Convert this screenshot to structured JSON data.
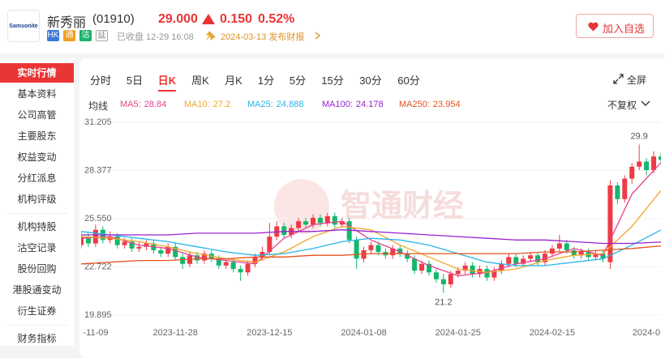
{
  "header": {
    "logo": "Samsonite",
    "name": "新秀丽",
    "code": "(01910)",
    "price": "29.000",
    "change": "0.150",
    "change_pct": "0.52%",
    "badges": [
      "HK",
      "通",
      "沽",
      "延"
    ],
    "status": "已收盘 12-29 16:08",
    "event": "2024-03-13 发布财报",
    "watch_button": "加入自选"
  },
  "sidebar": [
    "实时行情",
    "基本资料",
    "公司高管",
    "主要股东",
    "权益变动",
    "分红派息",
    "机构评级",
    "机构持股",
    "沽空记录",
    "股份回购",
    "港股通变动",
    "衍生证券",
    "财务指标"
  ],
  "sidebar_active": 0,
  "tabs": [
    "分时",
    "5日",
    "日K",
    "周K",
    "月K",
    "1分",
    "5分",
    "15分",
    "30分",
    "60分"
  ],
  "active_tab": 2,
  "fullscreen": "全屏",
  "ma_label": "均线",
  "adjust": "不复权",
  "chart_data": {
    "type": "candlestick",
    "watermark": "智通财经",
    "categories": [
      "-11-09",
      null,
      null,
      null,
      null,
      null,
      null,
      null,
      null,
      null,
      null,
      null,
      null,
      "2023-11-28",
      null,
      null,
      null,
      null,
      null,
      null,
      null,
      null,
      null,
      null,
      null,
      null,
      "2023-12-15",
      null,
      null,
      null,
      null,
      null,
      null,
      null,
      null,
      null,
      null,
      null,
      null,
      "2024-01-08",
      null,
      null,
      null,
      null,
      null,
      null,
      null,
      null,
      null,
      null,
      null,
      null,
      "2024-01-25",
      null,
      null,
      null,
      null,
      null,
      null,
      null,
      null,
      null,
      null,
      null,
      null,
      "2024-02-15",
      null,
      null,
      null,
      null,
      null,
      null,
      null,
      null,
      null,
      null,
      null,
      null,
      "2024-0",
      null,
      null
    ],
    "open": [
      24.0,
      24.5,
      24.1,
      24.9,
      24.3,
      24.5,
      24.0,
      24.2,
      23.8,
      23.9,
      24.1,
      23.7,
      23.5,
      23.9,
      23.3,
      22.9,
      23.4,
      23.1,
      23.5,
      23.2,
      22.8,
      23.0,
      22.6,
      22.4,
      22.9,
      23.3,
      23.6,
      24.5,
      25.1,
      24.6,
      25.0,
      25.4,
      25.2,
      25.6,
      25.3,
      25.7,
      25.2,
      25.4,
      24.3,
      23.2,
      23.7,
      24.0,
      23.6,
      23.4,
      23.8,
      23.5,
      23.2,
      22.5,
      22.9,
      22.4,
      22.0,
      21.7,
      22.3,
      22.5,
      22.8,
      22.3,
      22.6,
      22.1,
      22.5,
      22.9,
      23.3,
      22.9,
      23.2,
      23.4,
      23.0,
      23.5,
      23.8,
      24.1,
      23.7,
      23.4,
      23.6,
      23.3,
      23.5,
      23.0,
      27.5,
      26.7,
      27.9,
      28.6,
      28.9,
      28.4,
      29.2
    ],
    "high": [
      24.8,
      24.7,
      25.2,
      25.1,
      24.8,
      24.7,
      24.4,
      24.4,
      24.2,
      24.3,
      24.3,
      23.9,
      24.1,
      24.1,
      23.5,
      23.6,
      23.6,
      23.7,
      23.7,
      23.4,
      23.2,
      23.2,
      22.8,
      23.1,
      23.5,
      23.9,
      25.3,
      25.4,
      25.3,
      25.2,
      25.6,
      25.6,
      25.8,
      25.8,
      25.9,
      25.9,
      25.6,
      25.6,
      24.5,
      23.9,
      24.2,
      24.2,
      23.8,
      24.0,
      24.0,
      23.7,
      23.4,
      23.1,
      23.1,
      22.6,
      22.3,
      22.5,
      22.7,
      23.0,
      23.0,
      22.8,
      22.8,
      22.7,
      23.1,
      23.5,
      23.5,
      23.4,
      23.6,
      23.6,
      23.7,
      24.0,
      24.6,
      24.3,
      23.9,
      23.8,
      23.8,
      23.7,
      23.7,
      27.8,
      27.7,
      28.1,
      28.8,
      29.9,
      29.1,
      29.5,
      29.4
    ],
    "low": [
      23.8,
      23.9,
      23.9,
      24.1,
      24.1,
      23.8,
      23.8,
      23.6,
      23.6,
      23.7,
      23.5,
      23.3,
      23.3,
      23.1,
      22.6,
      22.7,
      22.9,
      22.9,
      23.0,
      22.6,
      22.6,
      22.4,
      21.9,
      22.2,
      22.7,
      23.1,
      23.4,
      24.3,
      24.4,
      24.4,
      24.8,
      25.0,
      25.0,
      25.1,
      25.1,
      25.0,
      25.0,
      24.1,
      22.6,
      23.0,
      23.5,
      23.4,
      23.2,
      23.2,
      23.3,
      23.0,
      22.3,
      22.3,
      22.2,
      21.8,
      21.2,
      21.5,
      22.1,
      22.3,
      22.1,
      22.1,
      21.9,
      21.9,
      22.3,
      22.7,
      22.7,
      22.7,
      23.0,
      22.8,
      22.8,
      23.3,
      23.6,
      23.5,
      23.2,
      23.2,
      23.1,
      23.1,
      23.0,
      22.6,
      26.4,
      26.5,
      27.6,
      28.4,
      28.1,
      28.2,
      28.8
    ],
    "close": [
      24.5,
      24.1,
      24.9,
      24.3,
      24.5,
      24.0,
      24.2,
      23.8,
      23.9,
      24.1,
      23.7,
      23.5,
      23.9,
      23.3,
      22.9,
      23.4,
      23.1,
      23.5,
      23.2,
      22.8,
      23.0,
      22.6,
      22.4,
      22.9,
      23.3,
      23.6,
      24.5,
      25.1,
      24.6,
      25.0,
      25.4,
      25.2,
      25.6,
      25.3,
      25.7,
      25.2,
      25.4,
      24.3,
      23.2,
      23.7,
      24.0,
      23.6,
      23.4,
      23.8,
      23.5,
      23.2,
      22.5,
      22.9,
      22.4,
      22.0,
      21.7,
      22.3,
      22.5,
      22.8,
      22.3,
      22.6,
      22.1,
      22.5,
      22.9,
      23.3,
      22.9,
      23.2,
      23.4,
      23.0,
      23.5,
      23.8,
      24.1,
      23.7,
      23.4,
      23.6,
      23.3,
      23.5,
      23.2,
      27.5,
      26.7,
      27.9,
      28.6,
      28.9,
      28.4,
      29.2,
      29.0
    ],
    "up_color": "#ee3a45",
    "down_color": "#14b86b",
    "series": [
      {
        "name": "MA5:",
        "color": "#e8408e",
        "x": [
          0,
          4,
          8,
          12,
          16,
          20,
          24,
          28,
          32,
          36,
          40,
          44,
          48,
          52,
          56,
          60,
          64,
          68,
          72,
          76,
          80
        ],
        "values": [
          24.4,
          24.5,
          24.0,
          23.8,
          23.3,
          23.1,
          22.9,
          24.4,
          25.2,
          25.4,
          24.3,
          23.6,
          22.8,
          22.2,
          22.4,
          22.9,
          23.2,
          23.8,
          23.4,
          27.0,
          28.84
        ]
      },
      {
        "name": "MA10:",
        "color": "#f2a52a",
        "x": [
          0,
          4,
          8,
          12,
          16,
          20,
          24,
          28,
          32,
          36,
          40,
          44,
          48,
          52,
          56,
          60,
          64,
          68,
          72,
          76,
          80
        ],
        "values": [
          24.5,
          24.4,
          24.2,
          23.9,
          23.5,
          23.2,
          23.0,
          23.6,
          24.5,
          25.1,
          24.9,
          24.0,
          23.3,
          22.6,
          22.4,
          22.6,
          23.1,
          23.4,
          23.5,
          25.1,
          27.2
        ]
      },
      {
        "name": "MA25:",
        "color": "#2ab4e8",
        "x": [
          0,
          4,
          8,
          12,
          16,
          20,
          24,
          28,
          32,
          36,
          40,
          44,
          48,
          52,
          56,
          60,
          64,
          68,
          72,
          76,
          80
        ],
        "values": [
          24.8,
          24.6,
          24.4,
          24.2,
          23.9,
          23.6,
          23.4,
          23.5,
          23.8,
          24.2,
          24.4,
          24.3,
          24.0,
          23.5,
          23.0,
          22.8,
          22.8,
          23.0,
          23.2,
          24.0,
          24.888
        ]
      },
      {
        "name": "MA100:",
        "color": "#9a22d0",
        "x": [
          0,
          4,
          8,
          12,
          16,
          20,
          24,
          28,
          32,
          36,
          40,
          44,
          48,
          52,
          56,
          60,
          64,
          68,
          72,
          76,
          80
        ],
        "values": [
          24.6,
          24.6,
          24.6,
          24.6,
          24.7,
          24.7,
          24.7,
          24.8,
          24.8,
          24.9,
          24.8,
          24.7,
          24.6,
          24.5,
          24.4,
          24.3,
          24.3,
          24.2,
          24.1,
          24.1,
          24.178
        ]
      },
      {
        "name": "MA250:",
        "color": "#e5531d",
        "x": [
          0,
          4,
          8,
          12,
          16,
          20,
          24,
          28,
          32,
          36,
          40,
          44,
          48,
          52,
          56,
          60,
          64,
          68,
          72,
          76,
          80
        ],
        "values": [
          22.9,
          23.0,
          23.1,
          23.1,
          23.2,
          23.2,
          23.3,
          23.3,
          23.4,
          23.4,
          23.5,
          23.5,
          23.5,
          23.5,
          23.5,
          23.5,
          23.6,
          23.6,
          23.7,
          23.8,
          23.954
        ]
      }
    ],
    "ylim": [
      19.895,
      31.205
    ],
    "yticks": [
      19.895,
      22.722,
      {
        "value": 25.55,
        "label": "25.550"
      },
      28.377,
      31.205
    ],
    "grid": true
  }
}
